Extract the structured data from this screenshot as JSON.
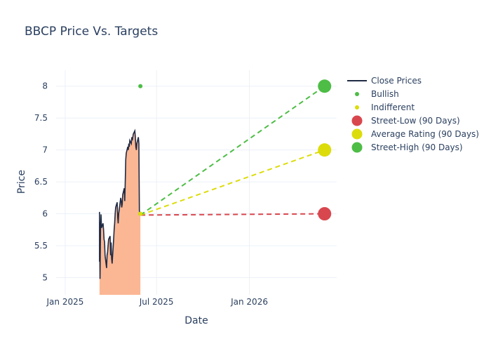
{
  "chart_data": {
    "type": "line",
    "title": "BBCP Price Vs. Targets",
    "xlabel": "Date",
    "ylabel": "Price",
    "x_range": [
      "2024-12-14",
      "2026-06-23"
    ],
    "ylim": [
      4.73,
      8.25
    ],
    "grid": true,
    "legend_placement": "top-right",
    "x_ticks": [
      {
        "date": "2025-01-01",
        "label": "Jan 2025"
      },
      {
        "date": "2025-07-01",
        "label": "Jul 2025"
      },
      {
        "date": "2026-01-01",
        "label": "Jan 2026"
      }
    ],
    "y_ticks": [
      5,
      5.5,
      6,
      6.5,
      7,
      7.5,
      8
    ],
    "series": [
      {
        "name": "Close Prices",
        "kind": "line-area",
        "color": "#1f2a44",
        "fill": "#fbb794",
        "points": [
          [
            "2025-03-10",
            5.25
          ],
          [
            "2025-03-10",
            6.03
          ],
          [
            "2025-03-11",
            4.98
          ],
          [
            "2025-03-12",
            5.75
          ],
          [
            "2025-03-13",
            5.99
          ],
          [
            "2025-03-14",
            5.78
          ],
          [
            "2025-03-17",
            5.85
          ],
          [
            "2025-03-18",
            5.75
          ],
          [
            "2025-03-19",
            5.6
          ],
          [
            "2025-03-20",
            5.56
          ],
          [
            "2025-03-21",
            5.35
          ],
          [
            "2025-03-24",
            5.15
          ],
          [
            "2025-03-25",
            5.35
          ],
          [
            "2025-03-26",
            5.4
          ],
          [
            "2025-03-27",
            5.5
          ],
          [
            "2025-03-28",
            5.6
          ],
          [
            "2025-03-31",
            5.65
          ],
          [
            "2025-04-01",
            5.35
          ],
          [
            "2025-04-02",
            5.55
          ],
          [
            "2025-04-03",
            5.3
          ],
          [
            "2025-04-04",
            5.22
          ],
          [
            "2025-04-07",
            5.6
          ],
          [
            "2025-04-08",
            5.75
          ],
          [
            "2025-04-09",
            5.85
          ],
          [
            "2025-04-10",
            6.0
          ],
          [
            "2025-04-11",
            6.1
          ],
          [
            "2025-04-14",
            6.18
          ],
          [
            "2025-04-15",
            5.95
          ],
          [
            "2025-04-16",
            5.85
          ],
          [
            "2025-04-17",
            6.0
          ],
          [
            "2025-04-21",
            6.25
          ],
          [
            "2025-04-22",
            6.2
          ],
          [
            "2025-04-23",
            6.1
          ],
          [
            "2025-04-24",
            6.15
          ],
          [
            "2025-04-25",
            6.3
          ],
          [
            "2025-04-28",
            6.4
          ],
          [
            "2025-04-29",
            6.2
          ],
          [
            "2025-04-30",
            6.5
          ],
          [
            "2025-05-01",
            6.85
          ],
          [
            "2025-05-02",
            6.95
          ],
          [
            "2025-05-05",
            7.05
          ],
          [
            "2025-05-06",
            7.0
          ],
          [
            "2025-05-07",
            7.1
          ],
          [
            "2025-05-08",
            7.05
          ],
          [
            "2025-05-09",
            7.15
          ],
          [
            "2025-05-12",
            7.1
          ],
          [
            "2025-05-13",
            7.2
          ],
          [
            "2025-05-14",
            7.15
          ],
          [
            "2025-05-15",
            7.2
          ],
          [
            "2025-05-16",
            7.25
          ],
          [
            "2025-05-19",
            7.3
          ],
          [
            "2025-05-20",
            7.2
          ],
          [
            "2025-05-21",
            7.05
          ],
          [
            "2025-05-22",
            7.0
          ],
          [
            "2025-05-23",
            7.1
          ],
          [
            "2025-05-26",
            7.2
          ],
          [
            "2025-05-27",
            7.1
          ],
          [
            "2025-05-28",
            6.05
          ],
          [
            "2025-05-29",
            6.0
          ],
          [
            "2025-05-30",
            5.98
          ]
        ]
      },
      {
        "name": "Bullish",
        "kind": "markers",
        "color": "#4dbd45",
        "points": [
          [
            "2025-05-30",
            8.0
          ],
          [
            "2025-05-30",
            6.0
          ]
        ]
      },
      {
        "name": "Indifferent",
        "kind": "markers",
        "color": "#dcdc0a",
        "points": [
          [
            "2025-05-30",
            6.0
          ]
        ]
      },
      {
        "name": "Street-Low (90 Days)",
        "kind": "target",
        "color": "#d9474e",
        "points": [
          [
            "2025-05-30",
            5.98
          ],
          [
            "2026-05-30",
            6.0
          ]
        ]
      },
      {
        "name": "Average Rating (90 Days)",
        "kind": "target",
        "color": "#dcdc0a",
        "points": [
          [
            "2025-05-30",
            5.98
          ],
          [
            "2026-05-30",
            7.0
          ]
        ]
      },
      {
        "name": "Street-High (90 Days)",
        "kind": "target",
        "color": "#4dbd45",
        "points": [
          [
            "2025-05-30",
            5.98
          ],
          [
            "2026-05-30",
            8.0
          ]
        ]
      }
    ]
  }
}
